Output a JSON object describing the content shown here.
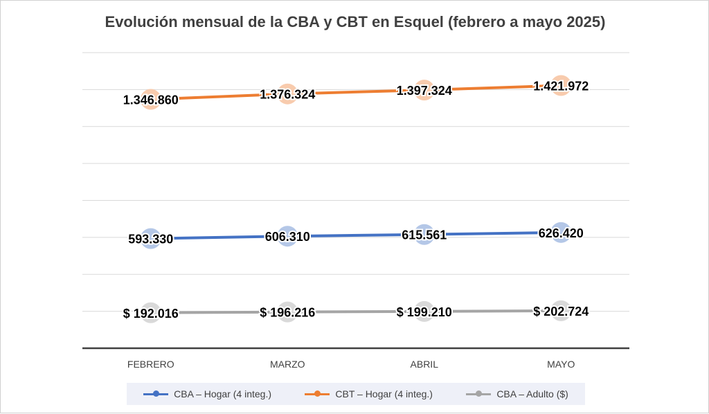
{
  "chart_data": {
    "type": "line",
    "title": "Evolución mensual de la CBA y CBT en Esquel (febrero a mayo 2025)",
    "categories": [
      "FEBRERO",
      "MARZO",
      "ABRIL",
      "MAYO"
    ],
    "series": [
      {
        "name": "CBA – Hogar (4 integ.)",
        "values": [
          593330,
          606310,
          615561,
          626420
        ],
        "labels": [
          "593.330",
          "606.310",
          "615.561",
          "626.420"
        ],
        "color": "#4472c4",
        "marker_color": "#b4c7e7"
      },
      {
        "name": "CBT – Hogar (4 integ.)",
        "values": [
          1346860,
          1376324,
          1397324,
          1421972
        ],
        "labels": [
          "1.346.860",
          "1.376.324",
          "1.397.324",
          "1.421.972"
        ],
        "color": "#ed7d31",
        "marker_color": "#f8cbad"
      },
      {
        "name": "CBA – Adulto ($)",
        "values": [
          192016,
          196216,
          199210,
          202724
        ],
        "labels": [
          "$ 192.016",
          "$ 196.216",
          "$ 199.210",
          "$ 202.724"
        ],
        "color": "#a5a5a5",
        "marker_color": "#d9d9d9"
      }
    ],
    "ylim": [
      0,
      1600000
    ],
    "grid": true,
    "legend_position": "bottom"
  }
}
